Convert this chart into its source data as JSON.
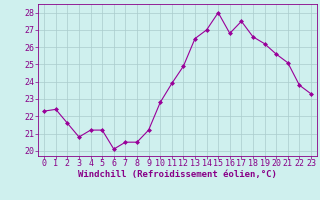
{
  "x": [
    0,
    1,
    2,
    3,
    4,
    5,
    6,
    7,
    8,
    9,
    10,
    11,
    12,
    13,
    14,
    15,
    16,
    17,
    18,
    19,
    20,
    21,
    22,
    23
  ],
  "y": [
    22.3,
    22.4,
    21.6,
    20.8,
    21.2,
    21.2,
    20.1,
    20.5,
    20.5,
    21.2,
    22.8,
    23.9,
    24.9,
    26.5,
    27.0,
    28.0,
    26.8,
    27.5,
    26.6,
    26.2,
    25.6,
    25.1,
    23.8,
    23.3
  ],
  "line_color": "#990099",
  "marker": "D",
  "marker_size": 2,
  "bg_color": "#cff0ee",
  "grid_color": "#aacccc",
  "xlabel": "Windchill (Refroidissement éolien,°C)",
  "ylim": [
    19.7,
    28.5
  ],
  "yticks": [
    20,
    21,
    22,
    23,
    24,
    25,
    26,
    27,
    28
  ],
  "xlim": [
    -0.5,
    23.5
  ],
  "xticks": [
    0,
    1,
    2,
    3,
    4,
    5,
    6,
    7,
    8,
    9,
    10,
    11,
    12,
    13,
    14,
    15,
    16,
    17,
    18,
    19,
    20,
    21,
    22,
    23
  ],
  "xlabel_fontsize": 6.5,
  "tick_fontsize": 6,
  "label_color": "#880088"
}
